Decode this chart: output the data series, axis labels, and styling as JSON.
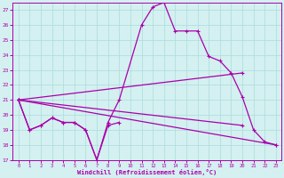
{
  "xlabel": "Windchill (Refroidissement éolien,°C)",
  "background_color": "#d4f0f0",
  "line_color": "#aa00aa",
  "grid_color": "#aadddd",
  "xlim": [
    -0.5,
    23.5
  ],
  "ylim": [
    17,
    27.5
  ],
  "yticks": [
    17,
    18,
    19,
    20,
    21,
    22,
    23,
    24,
    25,
    26,
    27
  ],
  "xticks": [
    0,
    1,
    2,
    3,
    4,
    5,
    6,
    7,
    8,
    9,
    10,
    11,
    12,
    13,
    14,
    15,
    16,
    17,
    18,
    19,
    20,
    21,
    22,
    23
  ],
  "marker": "+",
  "lines": [
    {
      "x": [
        0,
        1,
        2,
        3,
        4,
        5,
        6,
        7,
        8,
        9,
        11,
        12,
        13,
        14,
        15,
        16,
        17,
        18,
        19,
        20,
        21,
        22,
        23
      ],
      "y": [
        21.0,
        19.0,
        19.3,
        19.8,
        19.5,
        19.5,
        19.0,
        17.0,
        19.5,
        21.0,
        26.0,
        27.2,
        27.5,
        25.6,
        25.6,
        25.6,
        23.9,
        23.6,
        22.8,
        21.2,
        19.0,
        18.2,
        18.0
      ]
    },
    {
      "x": [
        0,
        1,
        2,
        3,
        4,
        5,
        6,
        7,
        8,
        9
      ],
      "y": [
        21.0,
        19.0,
        19.3,
        19.8,
        19.5,
        19.5,
        19.0,
        17.0,
        19.3,
        19.5
      ]
    },
    {
      "x": [
        0,
        23
      ],
      "y": [
        21.0,
        18.0
      ]
    },
    {
      "x": [
        0,
        20
      ],
      "y": [
        21.0,
        22.8
      ]
    },
    {
      "x": [
        0,
        20
      ],
      "y": [
        21.0,
        19.3
      ]
    }
  ]
}
